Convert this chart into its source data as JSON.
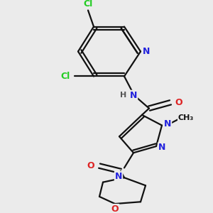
{
  "bg_color": "#ebebeb",
  "atom_colors": {
    "Cl": "#22cc22",
    "N": "#2222dd",
    "O": "#dd2222",
    "C": "#111111",
    "H": "#555555"
  },
  "bond_color": "#111111",
  "lw": 1.6
}
